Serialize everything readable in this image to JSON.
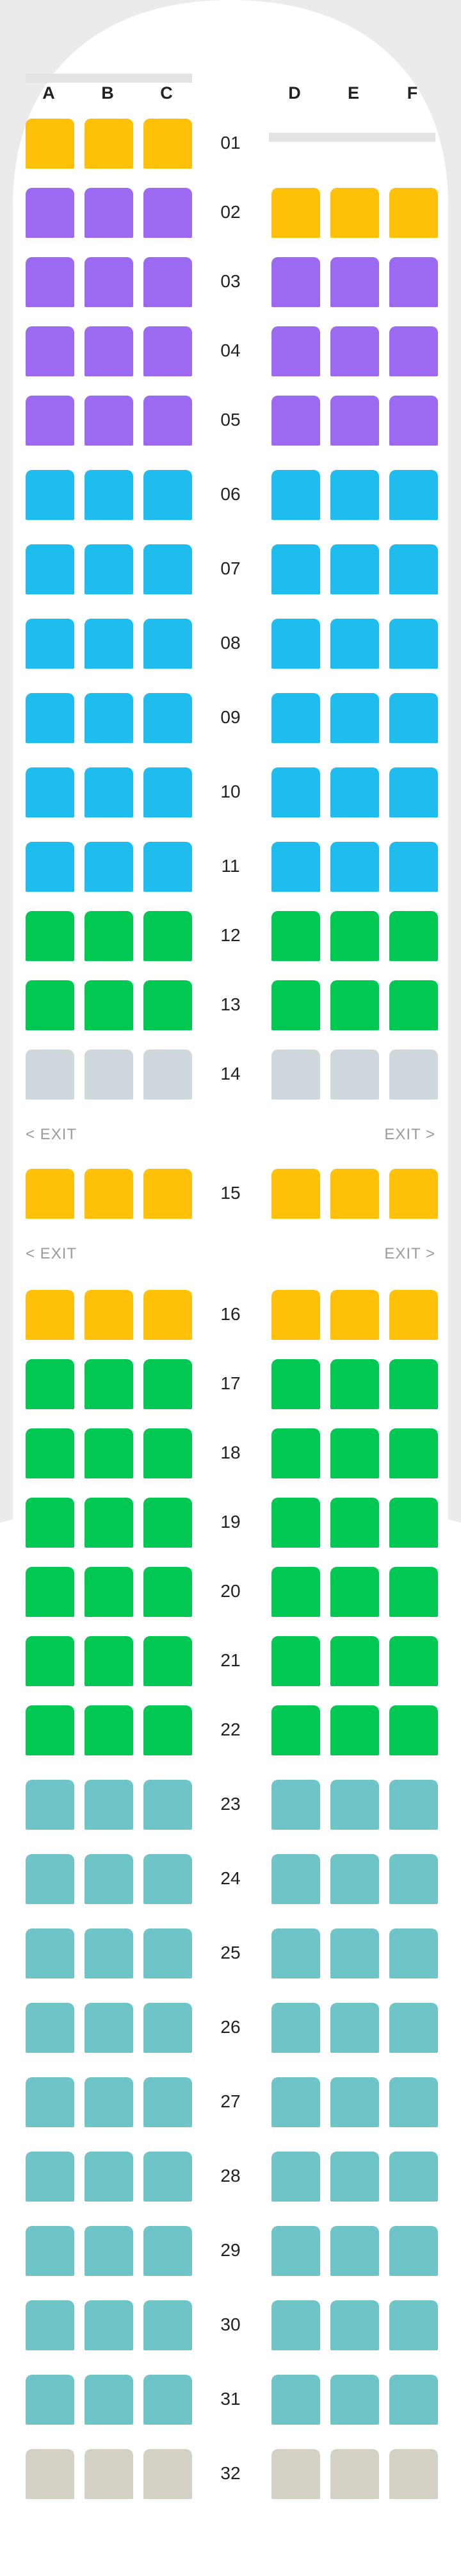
{
  "columns": {
    "left": [
      "A",
      "B",
      "C"
    ],
    "right": [
      "D",
      "E",
      "F"
    ]
  },
  "colors": {
    "yellow": "#ffc107",
    "purple": "#9c6af0",
    "blue": "#1fbcee",
    "green": "#00c853",
    "grey": "#cfd8dc",
    "teal": "#6fc4c8",
    "beige": "#d3d0c5"
  },
  "rows": [
    {
      "number": "01",
      "left": "yellow",
      "right": null
    },
    {
      "number": "02",
      "left": "purple",
      "right": "yellow"
    },
    {
      "number": "03",
      "left": "purple",
      "right": "purple"
    },
    {
      "number": "04",
      "left": "purple",
      "right": "purple"
    },
    {
      "number": "05",
      "left": "purple",
      "right": "purple"
    },
    {
      "number": "06",
      "left": "blue",
      "right": "blue"
    },
    {
      "number": "07",
      "left": "blue",
      "right": "blue"
    },
    {
      "number": "08",
      "left": "blue",
      "right": "blue"
    },
    {
      "number": "09",
      "left": "blue",
      "right": "blue"
    },
    {
      "number": "10",
      "left": "blue",
      "right": "blue"
    },
    {
      "number": "11",
      "left": "blue",
      "right": "blue"
    },
    {
      "number": "12",
      "left": "green",
      "right": "green"
    },
    {
      "number": "13",
      "left": "green",
      "right": "green"
    },
    {
      "number": "14",
      "left": "grey",
      "right": "grey"
    },
    {
      "number": "15",
      "left": "yellow",
      "right": "yellow"
    },
    {
      "number": "16",
      "left": "yellow",
      "right": "yellow"
    },
    {
      "number": "17",
      "left": "green",
      "right": "green"
    },
    {
      "number": "18",
      "left": "green",
      "right": "green"
    },
    {
      "number": "19",
      "left": "green",
      "right": "green"
    },
    {
      "number": "20",
      "left": "green",
      "right": "green"
    },
    {
      "number": "21",
      "left": "green",
      "right": "green"
    },
    {
      "number": "22",
      "left": "green",
      "right": "green"
    },
    {
      "number": "23",
      "left": "teal",
      "right": "teal"
    },
    {
      "number": "24",
      "left": "teal",
      "right": "teal"
    },
    {
      "number": "25",
      "left": "teal",
      "right": "teal"
    },
    {
      "number": "26",
      "left": "teal",
      "right": "teal"
    },
    {
      "number": "27",
      "left": "teal",
      "right": "teal"
    },
    {
      "number": "28",
      "left": "teal",
      "right": "teal"
    },
    {
      "number": "29",
      "left": "teal",
      "right": "teal"
    },
    {
      "number": "30",
      "left": "teal",
      "right": "teal"
    },
    {
      "number": "31",
      "left": "teal",
      "right": "teal"
    },
    {
      "number": "32",
      "left": "beige",
      "right": "beige"
    }
  ],
  "exits": [
    {
      "after_row": "14",
      "left_label": "< EXIT",
      "right_label": "EXIT >"
    },
    {
      "after_row": "15",
      "left_label": "< EXIT",
      "right_label": "EXIT >"
    }
  ]
}
